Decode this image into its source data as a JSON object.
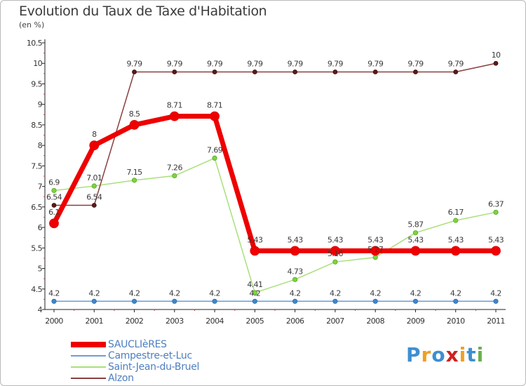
{
  "title": "Evolution du Taux de Taxe d'Habitation",
  "subtitle": "(en %)",
  "logo": {
    "letters": [
      "P",
      "r",
      "o",
      "x",
      "i",
      "t",
      "i"
    ],
    "colors": [
      "#3d8fd1",
      "#f0a020",
      "#3d8fd1",
      "#d02020",
      "#f0a020",
      "#3d8fd1",
      "#6ab04c"
    ]
  },
  "chart_data": {
    "type": "line",
    "title": "Evolution du Taux de Taxe d'Habitation",
    "ylabel": "(en %)",
    "x": [
      "2000",
      "2001",
      "2002",
      "2003",
      "2004",
      "2005",
      "2006",
      "2007",
      "2008",
      "2009",
      "2010",
      "2011"
    ],
    "ylim": [
      4,
      10.5
    ],
    "yticks": [
      "4",
      "4.5",
      "5",
      "5.5",
      "6",
      "6.5",
      "7",
      "7.5",
      "8",
      "8.5",
      "9",
      "9.5",
      "10",
      "10.5"
    ],
    "grid": false,
    "legend_position": "bottom-left",
    "series": [
      {
        "name": "SAUCLIèRES",
        "color": "#ee0000",
        "values": [
          6.1,
          8,
          8.5,
          8.71,
          8.71,
          5.43,
          5.43,
          5.43,
          5.43,
          5.43,
          5.43,
          5.43
        ],
        "labels": [
          "6.1",
          "8",
          "8.5",
          "8.71",
          "8.71",
          "5.43",
          "5.43",
          "5.43",
          "5.43",
          "5.43",
          "5.43",
          "5.43"
        ]
      },
      {
        "name": "Campestre-et-Luc",
        "color": "#6d9ed4",
        "values": [
          4.2,
          4.2,
          4.2,
          4.2,
          4.2,
          4.2,
          4.2,
          4.2,
          4.2,
          4.2,
          4.2,
          4.2
        ],
        "labels": [
          "4.2",
          "4.2",
          "4.2",
          "4.2",
          "4.2",
          "4.2",
          "4.2",
          "4.2",
          "4.2",
          "4.2",
          "4.2",
          "4.2"
        ]
      },
      {
        "name": "Saint-Jean-du-Bruel",
        "color": "#a9e07a",
        "values": [
          6.9,
          7.01,
          7.15,
          7.26,
          7.69,
          4.41,
          4.73,
          5.16,
          5.27,
          5.87,
          6.17,
          6.37
        ],
        "labels": [
          "6.9",
          "7.01",
          "7.15",
          "7.26",
          "7.69",
          "4.41",
          "4.73",
          "5.16",
          "5.27",
          "5.87",
          "6.17",
          "6.37"
        ]
      },
      {
        "name": "Alzon",
        "color": "#8a3f3f",
        "values": [
          6.54,
          6.54,
          9.79,
          9.79,
          9.79,
          9.79,
          9.79,
          9.79,
          9.79,
          9.79,
          9.79,
          10
        ],
        "labels": [
          "6.54",
          "6.54",
          "9.79",
          "9.79",
          "9.79",
          "9.79",
          "9.79",
          "9.79",
          "9.79",
          "9.79",
          "9.79",
          "10"
        ]
      }
    ]
  }
}
